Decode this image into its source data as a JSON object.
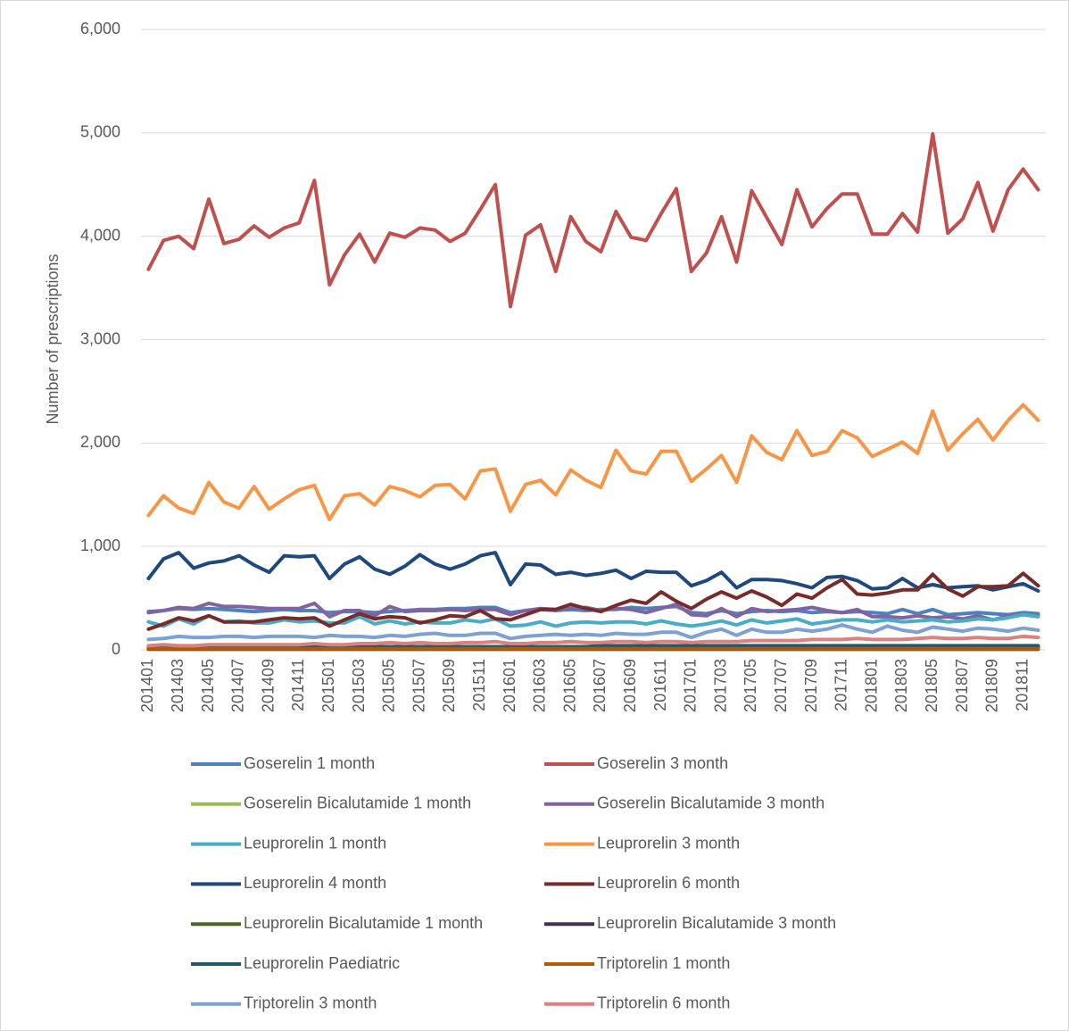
{
  "chart_data": {
    "type": "line",
    "y_label": "Number of prescriptions",
    "categories": [
      "201401",
      null,
      "201403",
      null,
      "201405",
      null,
      "201407",
      null,
      "201409",
      null,
      "201411",
      null,
      "201501",
      null,
      "201503",
      null,
      "201505",
      null,
      "201507",
      null,
      "201509",
      null,
      "201511",
      null,
      "201601",
      null,
      "201603",
      null,
      "201605",
      null,
      "201607",
      null,
      "201609",
      null,
      "201611",
      null,
      "201701",
      null,
      "201703",
      null,
      "201705",
      null,
      "201707",
      null,
      "201709",
      null,
      "201711",
      null,
      "201801",
      null,
      "201803",
      null,
      "201805",
      null,
      "201807",
      null,
      "201809",
      null,
      "201811",
      null
    ],
    "ylim": [
      0,
      6000
    ],
    "yticks": [
      0,
      {
        "value": 1000,
        "label": "1,000"
      },
      {
        "value": 2000,
        "label": "2,000"
      },
      {
        "value": 3000,
        "label": "3,000"
      },
      {
        "value": 4000,
        "label": "4,000"
      },
      {
        "value": 5000,
        "label": "5,000"
      },
      {
        "value": 6000,
        "label": "6,000"
      }
    ],
    "grid": true,
    "legend": "bottom",
    "series": [
      {
        "name": "Goserelin 1 month",
        "color": "#4f81bd",
        "values": [
          370,
          380,
          400,
          390,
          400,
          390,
          380,
          370,
          380,
          390,
          380,
          380,
          360,
          370,
          370,
          360,
          370,
          380,
          390,
          390,
          400,
          400,
          410,
          410,
          360,
          380,
          390,
          380,
          390,
          380,
          390,
          390,
          410,
          400,
          410,
          420,
          360,
          350,
          380,
          350,
          370,
          380,
          370,
          380,
          360,
          370,
          360,
          370,
          360,
          350,
          390,
          350,
          390,
          340,
          350,
          360,
          350,
          340,
          360,
          350
        ]
      },
      {
        "name": "Goserelin 3 month",
        "color": "#c0504d",
        "values": [
          3680,
          3960,
          4000,
          3880,
          4360,
          3930,
          3970,
          4100,
          3990,
          4080,
          4130,
          4540,
          3530,
          3820,
          4020,
          3750,
          4030,
          3990,
          4080,
          4060,
          3950,
          4030,
          4260,
          4500,
          3320,
          4010,
          4110,
          3660,
          4190,
          3950,
          3850,
          4240,
          3990,
          3960,
          4220,
          4460,
          3660,
          3840,
          4190,
          3750,
          4440,
          4180,
          3920,
          4450,
          4090,
          4270,
          4410,
          4410,
          4020,
          4020,
          4220,
          4040,
          4990,
          4030,
          4170,
          4520,
          4050,
          4450,
          4650,
          4450
        ]
      },
      {
        "name": "Goserelin Bicalutamide 1 month",
        "color": "#9bbb59",
        "values": [
          10,
          10,
          10,
          10,
          10,
          10,
          10,
          10,
          10,
          10,
          10,
          10,
          10,
          10,
          10,
          10,
          10,
          10,
          10,
          10,
          10,
          10,
          10,
          10,
          10,
          10,
          10,
          10,
          10,
          10,
          10,
          10,
          10,
          10,
          10,
          10,
          10,
          10,
          10,
          10,
          10,
          10,
          10,
          10,
          10,
          10,
          10,
          10,
          10,
          10,
          10,
          10,
          10,
          10,
          10,
          10,
          10,
          10,
          10,
          10
        ]
      },
      {
        "name": "Goserelin Bicalutamide 3 month",
        "color": "#8064a2",
        "values": [
          360,
          380,
          410,
          400,
          450,
          420,
          420,
          410,
          400,
          400,
          400,
          450,
          320,
          380,
          380,
          330,
          420,
          370,
          380,
          380,
          390,
          380,
          390,
          390,
          340,
          380,
          400,
          390,
          400,
          410,
          380,
          400,
          390,
          360,
          400,
          440,
          340,
          330,
          400,
          320,
          400,
          370,
          380,
          390,
          410,
          380,
          360,
          390,
          320,
          320,
          310,
          330,
          310,
          320,
          300,
          330,
          290,
          330,
          340,
          330
        ]
      },
      {
        "name": "Leuprorelin 1 month",
        "color": "#4bacc6",
        "values": [
          270,
          230,
          300,
          250,
          330,
          270,
          280,
          260,
          260,
          290,
          270,
          280,
          260,
          260,
          320,
          250,
          280,
          250,
          270,
          260,
          260,
          290,
          270,
          300,
          230,
          240,
          270,
          230,
          260,
          270,
          260,
          270,
          270,
          250,
          280,
          250,
          230,
          250,
          280,
          240,
          290,
          260,
          280,
          300,
          250,
          270,
          290,
          290,
          270,
          290,
          270,
          280,
          290,
          270,
          280,
          300,
          290,
          310,
          340,
          320
        ]
      },
      {
        "name": "Leuprorelin 3 month",
        "color": "#f79646",
        "values": [
          1300,
          1490,
          1370,
          1320,
          1620,
          1430,
          1370,
          1580,
          1360,
          1460,
          1550,
          1590,
          1260,
          1490,
          1510,
          1400,
          1580,
          1540,
          1480,
          1590,
          1600,
          1460,
          1730,
          1750,
          1340,
          1600,
          1640,
          1500,
          1740,
          1640,
          1570,
          1930,
          1730,
          1700,
          1920,
          1920,
          1630,
          1750,
          1880,
          1620,
          2070,
          1910,
          1840,
          2120,
          1880,
          1920,
          2120,
          2050,
          1870,
          1940,
          2010,
          1900,
          2310,
          1930,
          2090,
          2230,
          2030,
          2220,
          2370,
          2220
        ]
      },
      {
        "name": "Leuprorelin 4 month",
        "color": "#1f497d",
        "values": [
          690,
          880,
          940,
          790,
          840,
          860,
          910,
          820,
          750,
          910,
          900,
          910,
          690,
          830,
          900,
          780,
          730,
          810,
          920,
          830,
          780,
          830,
          910,
          940,
          630,
          830,
          820,
          730,
          750,
          720,
          740,
          770,
          690,
          760,
          750,
          750,
          620,
          670,
          750,
          600,
          680,
          680,
          670,
          640,
          600,
          700,
          710,
          670,
          590,
          600,
          690,
          600,
          630,
          600,
          610,
          620,
          580,
          610,
          640,
          570
        ]
      },
      {
        "name": "Leuprorelin 6 month",
        "color": "#772c2a",
        "values": [
          200,
          250,
          310,
          280,
          330,
          270,
          270,
          270,
          290,
          310,
          300,
          310,
          230,
          290,
          350,
          300,
          320,
          310,
          260,
          290,
          330,
          320,
          380,
          300,
          290,
          340,
          390,
          390,
          440,
          400,
          370,
          430,
          480,
          450,
          560,
          470,
          400,
          490,
          560,
          500,
          570,
          510,
          430,
          540,
          500,
          600,
          680,
          540,
          530,
          550,
          580,
          580,
          730,
          590,
          520,
          610,
          610,
          620,
          740,
          620
        ]
      },
      {
        "name": "Leuprorelin Bicalutamide 1 month",
        "color": "#4f6228",
        "values": [
          5,
          5,
          5,
          5,
          5,
          5,
          5,
          5,
          5,
          5,
          5,
          5,
          5,
          5,
          5,
          5,
          5,
          5,
          5,
          5,
          5,
          5,
          5,
          5,
          5,
          5,
          5,
          5,
          5,
          5,
          5,
          5,
          5,
          5,
          5,
          5,
          5,
          5,
          5,
          5,
          5,
          5,
          5,
          5,
          5,
          5,
          5,
          5,
          5,
          5,
          5,
          5,
          5,
          5,
          5,
          5,
          5,
          5,
          5,
          5
        ]
      },
      {
        "name": "Leuprorelin Bicalutamide 3 month",
        "color": "#3f3151",
        "values": [
          null,
          null,
          null,
          null,
          null,
          null,
          null,
          null,
          null,
          null,
          null,
          null,
          null,
          null,
          null,
          null,
          null,
          null,
          null,
          null,
          null,
          null,
          null,
          null,
          null,
          null,
          null,
          null,
          null,
          null,
          null,
          null,
          null,
          null,
          null,
          null,
          10,
          15,
          20,
          20,
          20,
          25,
          25,
          25,
          30,
          30,
          30,
          30,
          30,
          30,
          30,
          30,
          30,
          30,
          30,
          30,
          30,
          30,
          30,
          30
        ]
      },
      {
        "name": "Leuprorelin Paediatric",
        "color": "#215967",
        "values": [
          30,
          30,
          30,
          30,
          30,
          30,
          30,
          30,
          30,
          30,
          30,
          30,
          30,
          30,
          30,
          30,
          30,
          30,
          30,
          30,
          30,
          30,
          30,
          30,
          30,
          30,
          30,
          30,
          30,
          30,
          40,
          40,
          40,
          40,
          40,
          40,
          40,
          40,
          40,
          40,
          40,
          40,
          40,
          40,
          40,
          40,
          40,
          40,
          40,
          40,
          40,
          40,
          40,
          40,
          40,
          40,
          40,
          40,
          40,
          40
        ]
      },
      {
        "name": "Triptorelin 1 month",
        "color": "#b65708",
        "values": [
          10,
          10,
          10,
          10,
          10,
          10,
          10,
          10,
          10,
          10,
          10,
          10,
          10,
          10,
          10,
          10,
          10,
          10,
          10,
          10,
          10,
          10,
          10,
          10,
          10,
          10,
          10,
          10,
          10,
          10,
          10,
          10,
          10,
          10,
          10,
          10,
          10,
          10,
          10,
          10,
          10,
          10,
          10,
          10,
          10,
          10,
          10,
          10,
          10,
          10,
          10,
          10,
          10,
          10,
          10,
          10,
          10,
          10,
          10,
          10
        ]
      },
      {
        "name": "Triptorelin 3 month",
        "color": "#7da1d1",
        "values": [
          100,
          110,
          130,
          120,
          120,
          130,
          130,
          120,
          130,
          130,
          130,
          120,
          140,
          130,
          130,
          120,
          140,
          130,
          150,
          160,
          140,
          140,
          160,
          160,
          110,
          130,
          140,
          150,
          140,
          150,
          140,
          160,
          150,
          150,
          170,
          170,
          120,
          170,
          200,
          140,
          200,
          170,
          170,
          200,
          180,
          200,
          240,
          200,
          170,
          230,
          190,
          170,
          220,
          200,
          180,
          210,
          200,
          180,
          210,
          190
        ]
      },
      {
        "name": "Triptorelin 6 month",
        "color": "#d9827e",
        "values": [
          40,
          50,
          40,
          40,
          50,
          50,
          50,
          50,
          50,
          50,
          50,
          60,
          50,
          50,
          60,
          60,
          70,
          60,
          70,
          60,
          60,
          70,
          70,
          80,
          60,
          60,
          70,
          70,
          80,
          70,
          70,
          80,
          80,
          70,
          80,
          80,
          70,
          80,
          80,
          80,
          90,
          90,
          90,
          90,
          100,
          100,
          100,
          110,
          100,
          100,
          100,
          110,
          120,
          110,
          110,
          120,
          110,
          110,
          130,
          120
        ]
      }
    ]
  }
}
